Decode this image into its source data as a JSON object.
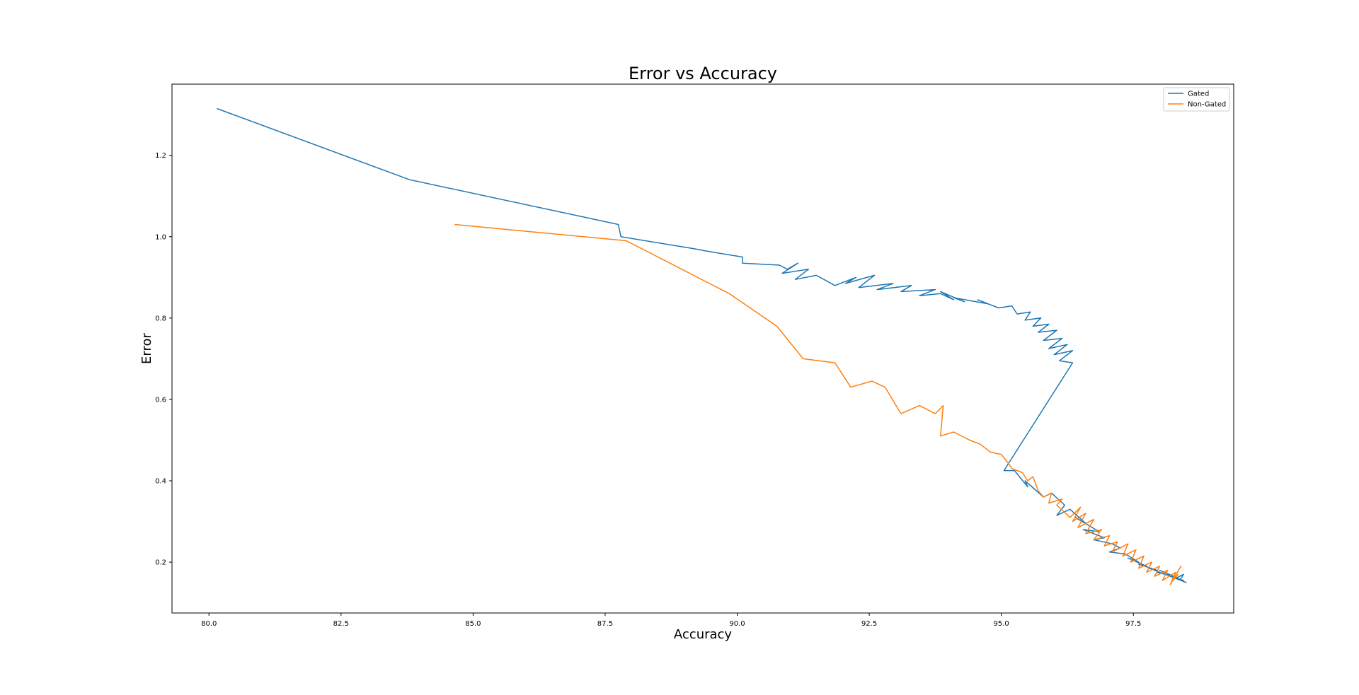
{
  "chart_data": {
    "type": "line",
    "title": "Error vs Accuracy",
    "xlabel": "Accuracy",
    "ylabel": "Error",
    "xlim": [
      79.3,
      99.4
    ],
    "ylim": [
      0.075,
      1.375
    ],
    "xticks": [
      80.0,
      82.5,
      85.0,
      87.5,
      90.0,
      92.5,
      95.0,
      97.5
    ],
    "xtick_labels": [
      "80.0",
      "82.5",
      "85.0",
      "87.5",
      "90.0",
      "92.5",
      "95.0",
      "97.5"
    ],
    "yticks": [
      0.2,
      0.4,
      0.6,
      0.8,
      1.0,
      1.2
    ],
    "ytick_labels": [
      "0.2",
      "0.4",
      "0.6",
      "0.8",
      "1.0",
      "1.2"
    ],
    "grid": false,
    "legend_position": "top-right",
    "series": [
      {
        "name": "Gated",
        "color": "#1f77b4",
        "x": [
          80.15,
          83.8,
          87.75,
          87.8,
          89.2,
          89.4,
          90.1,
          90.1,
          90.8,
          90.95,
          91.15,
          90.85,
          91.35,
          91.1,
          91.5,
          91.85,
          92.25,
          92.05,
          92.6,
          92.3,
          92.95,
          92.65,
          93.3,
          93.1,
          93.75,
          93.45,
          93.85,
          94.1,
          93.85,
          94.3,
          94.1,
          94.75,
          94.55,
          94.95,
          95.2,
          95.3,
          95.55,
          95.45,
          95.75,
          95.6,
          95.9,
          95.7,
          96.05,
          95.8,
          96.15,
          95.9,
          96.25,
          96.0,
          96.35,
          96.1,
          96.35,
          95.05,
          95.25,
          95.5,
          95.45,
          95.8,
          95.95,
          96.2,
          96.05,
          96.3,
          96.6,
          96.4,
          96.85,
          96.55,
          96.95,
          96.75,
          97.1,
          97.25,
          97.05,
          97.35,
          97.6,
          97.4,
          97.75,
          97.6,
          97.95,
          97.8,
          98.1,
          97.95,
          98.25,
          98.0,
          98.35,
          98.1,
          98.45,
          98.2,
          98.5,
          98.3,
          98.45,
          98.38
        ],
        "y": [
          1.315,
          1.14,
          1.03,
          1.0,
          0.97,
          0.965,
          0.95,
          0.935,
          0.93,
          0.92,
          0.935,
          0.91,
          0.92,
          0.895,
          0.905,
          0.88,
          0.9,
          0.885,
          0.905,
          0.875,
          0.885,
          0.87,
          0.88,
          0.865,
          0.87,
          0.855,
          0.86,
          0.845,
          0.865,
          0.84,
          0.85,
          0.835,
          0.845,
          0.825,
          0.83,
          0.81,
          0.815,
          0.795,
          0.8,
          0.78,
          0.785,
          0.765,
          0.77,
          0.745,
          0.75,
          0.725,
          0.735,
          0.71,
          0.72,
          0.695,
          0.69,
          0.425,
          0.425,
          0.385,
          0.4,
          0.36,
          0.37,
          0.34,
          0.315,
          0.33,
          0.295,
          0.31,
          0.275,
          0.28,
          0.26,
          0.255,
          0.245,
          0.235,
          0.225,
          0.22,
          0.2,
          0.21,
          0.19,
          0.195,
          0.18,
          0.185,
          0.17,
          0.175,
          0.165,
          0.18,
          0.16,
          0.17,
          0.155,
          0.165,
          0.15,
          0.16,
          0.17,
          0.155
        ]
      },
      {
        "name": "Non-Gated",
        "color": "#ff7f0e",
        "x": [
          84.65,
          87.9,
          89.85,
          90.75,
          91.25,
          91.85,
          92.15,
          92.55,
          92.8,
          93.1,
          93.45,
          93.75,
          93.9,
          93.85,
          94.1,
          94.4,
          94.6,
          94.8,
          95.0,
          95.15,
          95.2,
          95.4,
          95.5,
          95.6,
          95.7,
          95.8,
          95.95,
          95.9,
          96.15,
          96.05,
          96.3,
          96.5,
          96.35,
          96.6,
          96.45,
          96.75,
          96.6,
          96.9,
          96.75,
          97.05,
          96.95,
          97.2,
          97.1,
          97.4,
          97.3,
          97.55,
          97.45,
          97.7,
          97.6,
          97.85,
          97.75,
          98.0,
          97.9,
          98.15,
          98.05,
          98.3,
          98.2,
          98.4,
          98.25,
          98.35
        ],
        "y": [
          1.03,
          0.99,
          0.86,
          0.78,
          0.7,
          0.69,
          0.63,
          0.645,
          0.63,
          0.565,
          0.585,
          0.565,
          0.585,
          0.51,
          0.52,
          0.5,
          0.49,
          0.47,
          0.465,
          0.44,
          0.43,
          0.42,
          0.4,
          0.41,
          0.375,
          0.36,
          0.37,
          0.345,
          0.355,
          0.34,
          0.31,
          0.335,
          0.3,
          0.32,
          0.285,
          0.305,
          0.27,
          0.28,
          0.255,
          0.265,
          0.24,
          0.25,
          0.225,
          0.245,
          0.215,
          0.23,
          0.2,
          0.215,
          0.185,
          0.2,
          0.175,
          0.19,
          0.165,
          0.18,
          0.155,
          0.175,
          0.145,
          0.19,
          0.155,
          0.17
        ]
      }
    ]
  }
}
